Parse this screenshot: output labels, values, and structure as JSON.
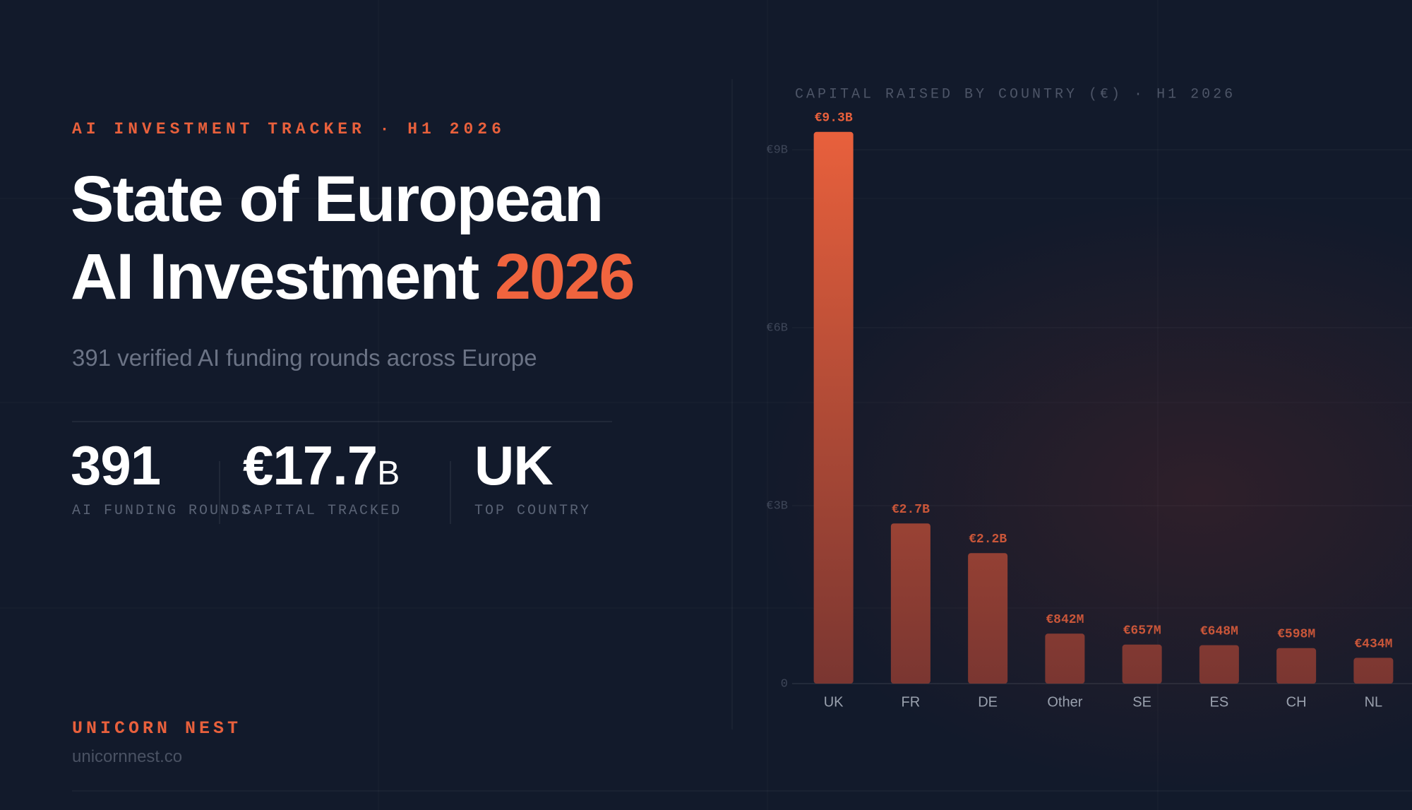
{
  "header": {
    "kicker": "AI INVESTMENT TRACKER · H1 2026",
    "title_line1": "State of European",
    "title_line2": "AI Investment",
    "title_highlight": "2026",
    "subtitle": "391 verified AI funding rounds across Europe"
  },
  "stats": [
    {
      "value": "391",
      "label": "AI FUNDING ROUNDS"
    },
    {
      "value": "€17.7",
      "unit": "B",
      "label": "CAPITAL TRACKED"
    },
    {
      "value": "UK",
      "label": "TOP COUNTRY"
    }
  ],
  "footer": {
    "brand": "UNICORN NEST",
    "url": "unicornnest.co"
  },
  "chart_data": {
    "type": "bar",
    "title": "CAPITAL RAISED BY COUNTRY (€) · H1 2026",
    "categories": [
      "UK",
      "FR",
      "DE",
      "Other",
      "SE",
      "ES",
      "CH",
      "NL"
    ],
    "values": [
      9.3,
      2.7,
      2.2,
      0.842,
      0.657,
      0.648,
      0.598,
      0.434
    ],
    "value_labels": [
      "€9.3B",
      "€2.7B",
      "€2.2B",
      "€842M",
      "€657M",
      "€648M",
      "€598M",
      "€434M"
    ],
    "color": "#e8603c",
    "ylim": [
      0,
      10
    ],
    "yticks": [
      0,
      {
        "value": 3,
        "label": "€3B"
      },
      {
        "value": 6,
        "label": "€6B"
      },
      {
        "value": 9,
        "label": "€9B"
      }
    ],
    "grid": true
  }
}
